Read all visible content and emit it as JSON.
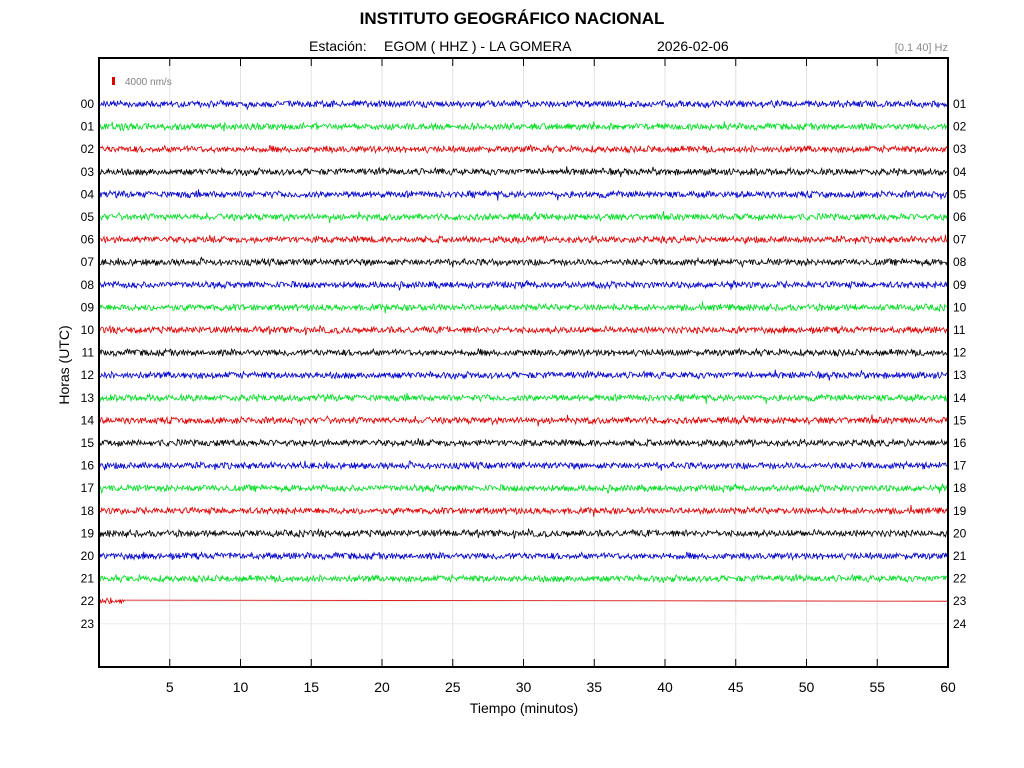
{
  "header": {
    "title": "INSTITUTO GEOGRÁFICO NACIONAL",
    "station_label": "Estación:",
    "station": "EGOM ( HHZ ) - LA GOMERA",
    "date": "2026-02-06",
    "filter": "[0.1 40] Hz"
  },
  "chart_data": {
    "type": "line",
    "xlabel": "Tiempo (minutos)",
    "ylabel": "Horas (UTC)",
    "xlim": [
      0,
      60
    ],
    "x_ticks": [
      5,
      10,
      15,
      20,
      25,
      30,
      35,
      40,
      45,
      50,
      55,
      60
    ],
    "grid": true,
    "scale_bar_label": "4000 nm/s",
    "scale_bar_color": "#dd0000",
    "left_hour_labels": [
      "00",
      "01",
      "02",
      "03",
      "04",
      "05",
      "06",
      "07",
      "08",
      "09",
      "10",
      "11",
      "12",
      "13",
      "14",
      "15",
      "16",
      "17",
      "18",
      "19",
      "20",
      "21",
      "22",
      "23"
    ],
    "right_hour_labels": [
      "01",
      "02",
      "03",
      "04",
      "05",
      "06",
      "07",
      "08",
      "09",
      "10",
      "11",
      "12",
      "13",
      "14",
      "15",
      "16",
      "17",
      "18",
      "19",
      "20",
      "21",
      "22",
      "23",
      "24"
    ],
    "trace_colors": [
      "#0000cc",
      "#00dd22",
      "#dd0000",
      "#000000"
    ],
    "series": [
      {
        "hour": "00",
        "x_end": 60
      },
      {
        "hour": "01",
        "x_end": 60
      },
      {
        "hour": "02",
        "x_end": 60
      },
      {
        "hour": "03",
        "x_end": 60
      },
      {
        "hour": "04",
        "x_end": 60
      },
      {
        "hour": "05",
        "x_end": 60
      },
      {
        "hour": "06",
        "x_end": 60
      },
      {
        "hour": "07",
        "x_end": 60
      },
      {
        "hour": "08",
        "x_end": 60
      },
      {
        "hour": "09",
        "x_end": 60
      },
      {
        "hour": "10",
        "x_end": 60
      },
      {
        "hour": "11",
        "x_end": 60
      },
      {
        "hour": "12",
        "x_end": 60
      },
      {
        "hour": "13",
        "x_end": 60
      },
      {
        "hour": "14",
        "x_end": 60
      },
      {
        "hour": "15",
        "x_end": 60
      },
      {
        "hour": "16",
        "x_end": 60
      },
      {
        "hour": "17",
        "x_end": 60
      },
      {
        "hour": "18",
        "x_end": 60
      },
      {
        "hour": "19",
        "x_end": 60
      },
      {
        "hour": "20",
        "x_end": 60
      },
      {
        "hour": "21",
        "x_end": 60
      },
      {
        "hour": "22",
        "x_end": 1.8,
        "flat_to": 60
      }
    ]
  }
}
